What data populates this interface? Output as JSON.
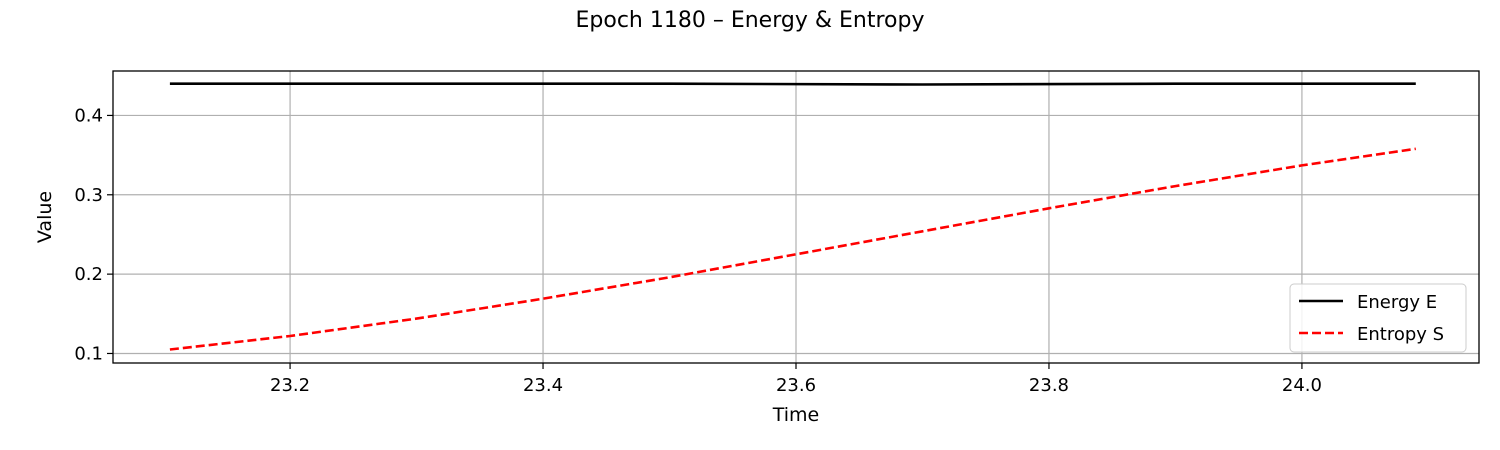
{
  "chart_data": {
    "type": "line",
    "title": "Epoch 1180 – Energy & Entropy",
    "xlabel": "Time",
    "ylabel": "Value",
    "xlim": [
      23.06,
      24.14
    ],
    "ylim": [
      0.088,
      0.456
    ],
    "xticks": [
      23.2,
      23.4,
      23.6,
      23.8,
      24.0
    ],
    "yticks": [
      0.1,
      0.2,
      0.3,
      0.4
    ],
    "xtick_labels": [
      "23.2",
      "23.4",
      "23.6",
      "23.8",
      "24.0"
    ],
    "ytick_labels": [
      "0.1",
      "0.2",
      "0.3",
      "0.4"
    ],
    "grid": true,
    "legend_position": "lower-right",
    "series": [
      {
        "name": "Energy E",
        "color": "#000000",
        "style": "solid",
        "x": [
          23.105,
          23.3,
          23.5,
          23.7,
          23.9,
          24.09
        ],
        "y": [
          0.44,
          0.44,
          0.44,
          0.439,
          0.44,
          0.44
        ]
      },
      {
        "name": "Entropy S",
        "color": "#ff0000",
        "style": "dashed",
        "x": [
          23.105,
          23.2,
          23.3,
          23.4,
          23.5,
          23.6,
          23.7,
          23.8,
          23.9,
          24.0,
          24.09
        ],
        "y": [
          0.105,
          0.122,
          0.144,
          0.169,
          0.196,
          0.225,
          0.254,
          0.283,
          0.311,
          0.337,
          0.358
        ]
      }
    ]
  }
}
